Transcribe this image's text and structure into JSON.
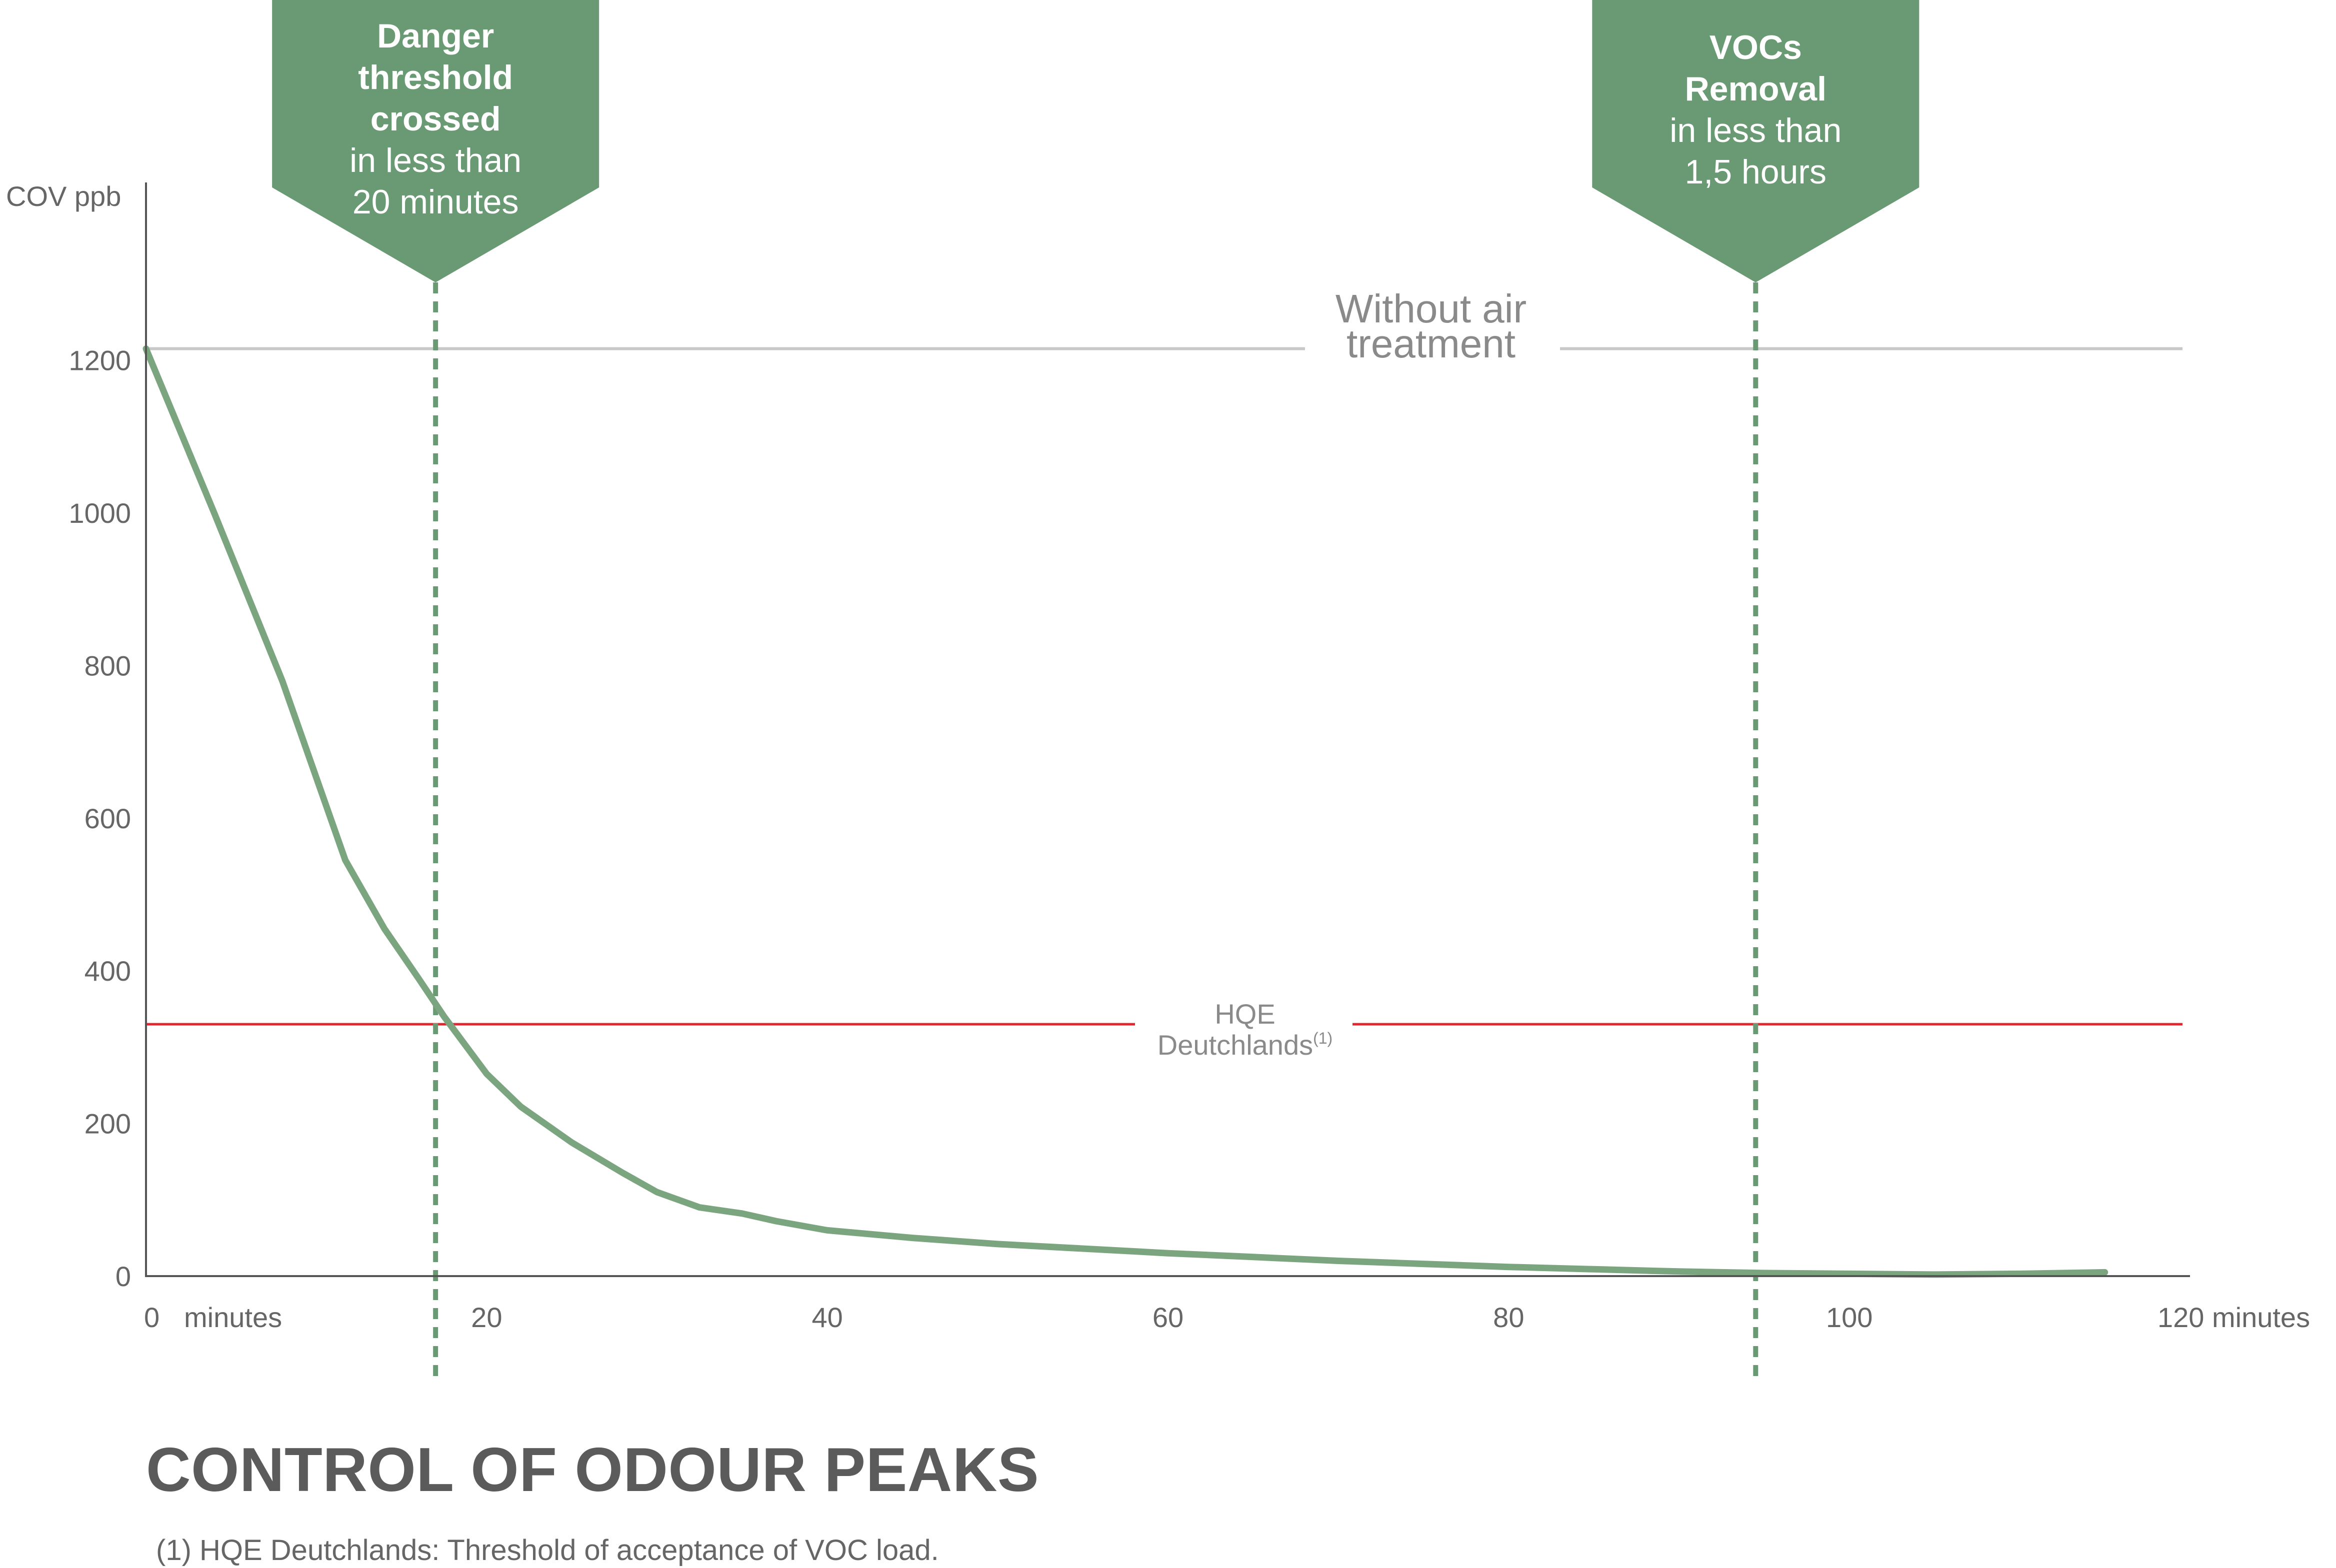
{
  "chart_data": {
    "type": "line",
    "title": "CONTROL OF ODOUR PEAKS",
    "footnote": "(1) HQE Deutchlands: Threshold of acceptance of VOC load.",
    "ylabel": "COV ppb",
    "xlabel_first": "minutes",
    "xlabel_last": "minutes",
    "x_ticks": [
      "0",
      "20",
      "40",
      "60",
      "80",
      "100",
      "120"
    ],
    "y_ticks": [
      "0",
      "200",
      "400",
      "600",
      "800",
      "1000",
      "1200"
    ],
    "xlim": [
      0,
      120
    ],
    "ylim": [
      0,
      1220
    ],
    "grid": false,
    "series": [
      {
        "name": "",
        "color": "#7ba57f",
        "x": [
          0,
          4,
          8,
          11.7,
          14,
          16,
          17.5,
          20,
          22,
          25,
          28,
          30,
          32.5,
          35,
          37,
          40,
          45,
          50,
          55,
          60,
          65,
          70,
          75,
          80,
          85,
          90,
          95,
          100,
          105,
          110,
          115
        ],
        "y": [
          1215,
          1000,
          780,
          545,
          455,
          390,
          340,
          265,
          222,
          175,
          135,
          110,
          90,
          82,
          72,
          60,
          50,
          42,
          36,
          30,
          25,
          20,
          16,
          12,
          9,
          6,
          4,
          3,
          2,
          3,
          5
        ]
      }
    ],
    "reference_lines": [
      {
        "label_line1": "Without air",
        "label_line2": "treatment",
        "y": 1215,
        "color": "#c8c8c8"
      },
      {
        "label_line1": "HQE",
        "label_line2": "Deutchlands",
        "label_sup": "(1)",
        "y": 330,
        "color": "#e0262e"
      }
    ],
    "markers": [
      {
        "x": 17,
        "bold_lines": [
          "Danger",
          "threshold",
          "crossed"
        ],
        "regular_lines": [
          "in less than",
          "20 minutes"
        ],
        "color": "#6a9a74"
      },
      {
        "x": 94.5,
        "bold_lines": [
          "VOCs",
          "Removal"
        ],
        "regular_lines": [
          "in less than",
          "1,5 hours"
        ],
        "color": "#6a9a74"
      }
    ],
    "axis_color": "#555555"
  }
}
